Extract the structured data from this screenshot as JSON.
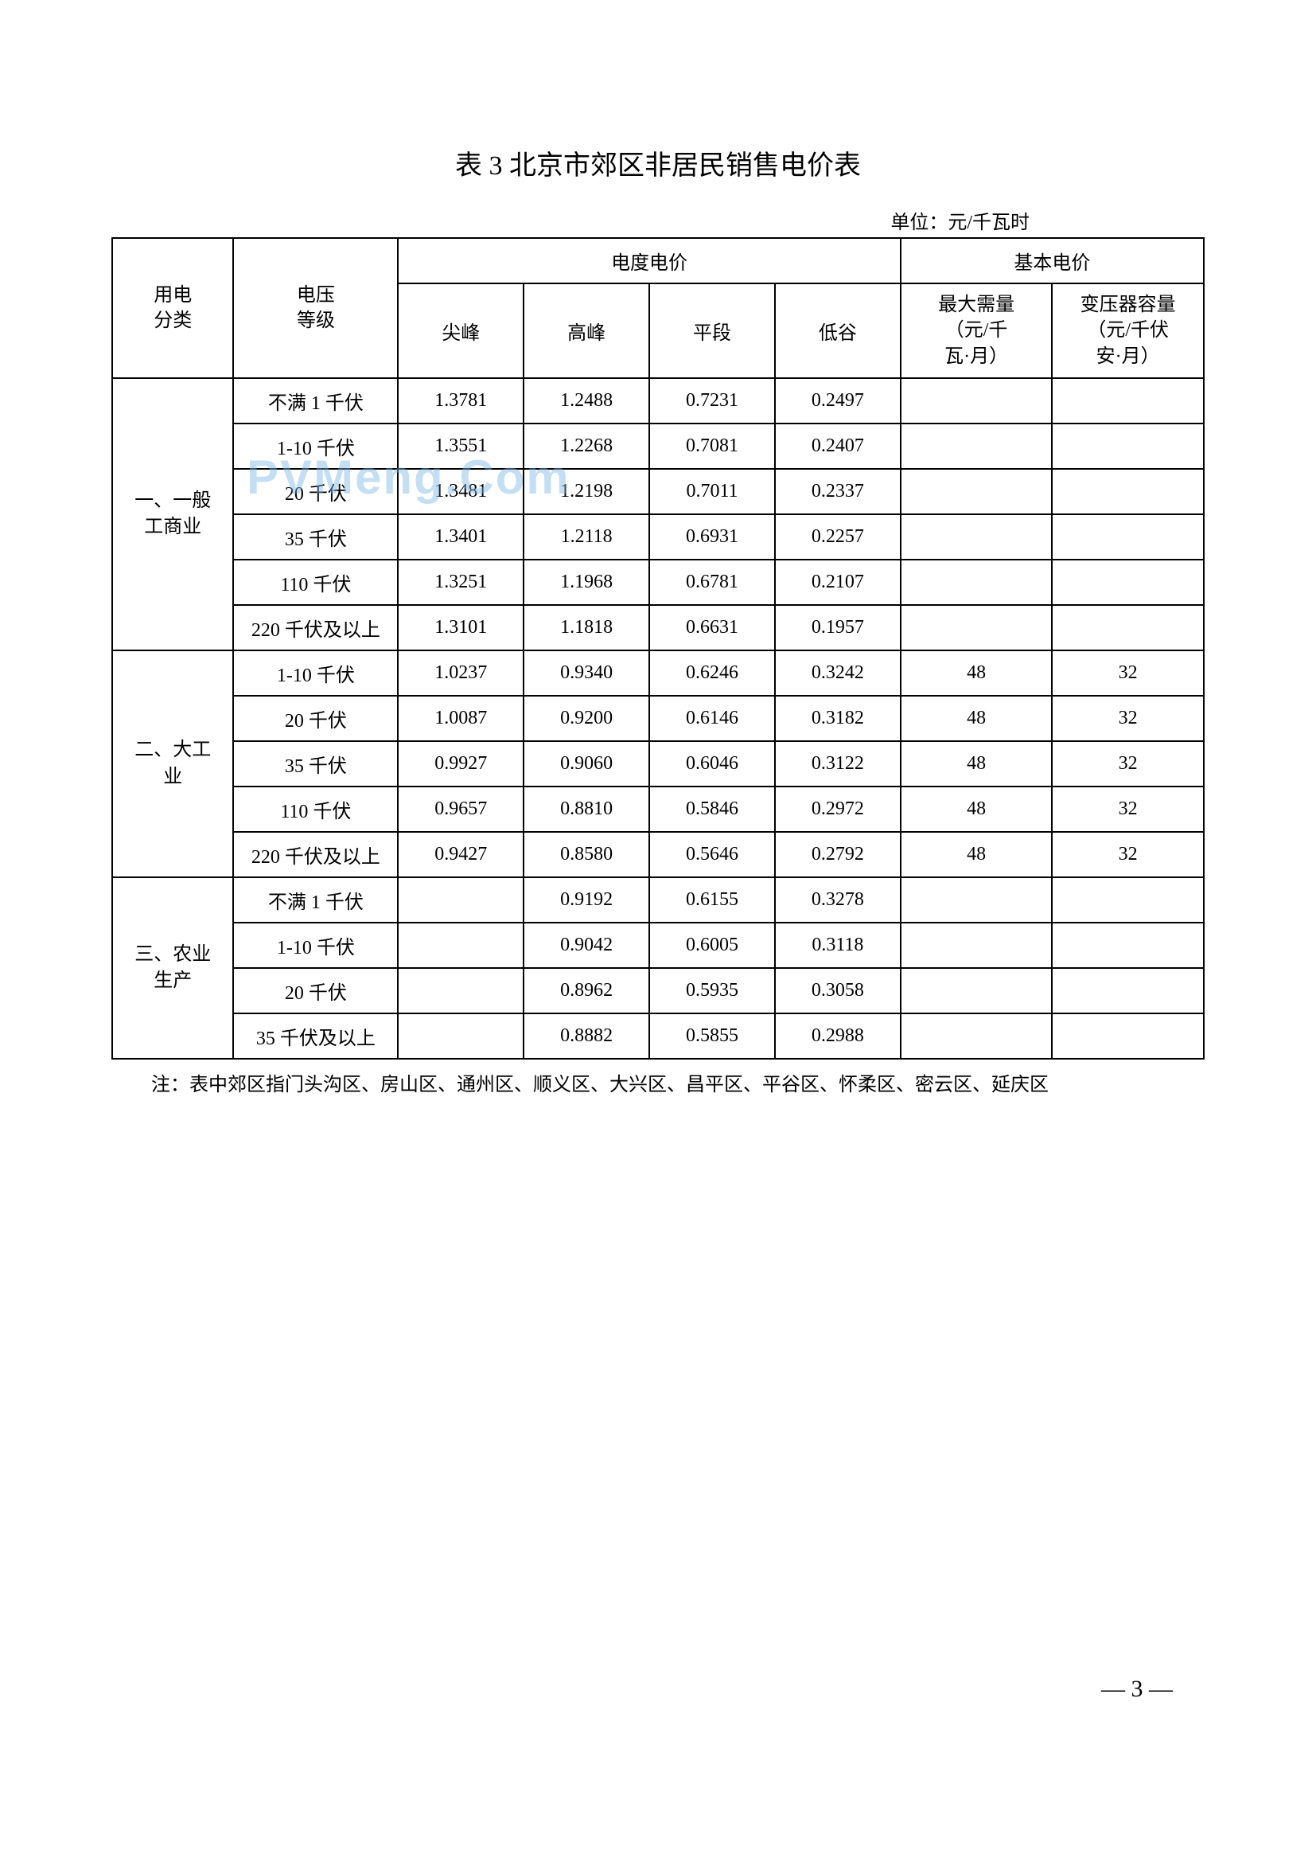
{
  "title": "表 3 北京市郊区非居民销售电价表",
  "unit": "单位：元/千瓦时",
  "headers": {
    "category": "用电\n分类",
    "voltage": "电压\n等级",
    "energy_price": "电度电价",
    "base_price": "基本电价",
    "peak_sharp": "尖峰",
    "peak_high": "高峰",
    "flat": "平段",
    "valley": "低谷",
    "max_demand": "最大需量\n（元/千\n瓦·月）",
    "transformer": "变压器容量\n（元/千伏\n安·月）"
  },
  "categories": [
    {
      "name": "一、一般\n工商业",
      "rows": [
        {
          "voltage": "不满 1 千伏",
          "sharp": "1.3781",
          "high": "1.2488",
          "flat": "0.7231",
          "valley": "0.2497",
          "demand": "",
          "trans": ""
        },
        {
          "voltage": "1-10 千伏",
          "sharp": "1.3551",
          "high": "1.2268",
          "flat": "0.7081",
          "valley": "0.2407",
          "demand": "",
          "trans": ""
        },
        {
          "voltage": "20 千伏",
          "sharp": "1.3481",
          "high": "1.2198",
          "flat": "0.7011",
          "valley": "0.2337",
          "demand": "",
          "trans": ""
        },
        {
          "voltage": "35 千伏",
          "sharp": "1.3401",
          "high": "1.2118",
          "flat": "0.6931",
          "valley": "0.2257",
          "demand": "",
          "trans": ""
        },
        {
          "voltage": "110 千伏",
          "sharp": "1.3251",
          "high": "1.1968",
          "flat": "0.6781",
          "valley": "0.2107",
          "demand": "",
          "trans": ""
        },
        {
          "voltage": "220 千伏及以上",
          "sharp": "1.3101",
          "high": "1.1818",
          "flat": "0.6631",
          "valley": "0.1957",
          "demand": "",
          "trans": ""
        }
      ]
    },
    {
      "name": "二、大工\n业",
      "rows": [
        {
          "voltage": "1-10 千伏",
          "sharp": "1.0237",
          "high": "0.9340",
          "flat": "0.6246",
          "valley": "0.3242",
          "demand": "48",
          "trans": "32"
        },
        {
          "voltage": "20 千伏",
          "sharp": "1.0087",
          "high": "0.9200",
          "flat": "0.6146",
          "valley": "0.3182",
          "demand": "48",
          "trans": "32"
        },
        {
          "voltage": "35 千伏",
          "sharp": "0.9927",
          "high": "0.9060",
          "flat": "0.6046",
          "valley": "0.3122",
          "demand": "48",
          "trans": "32"
        },
        {
          "voltage": "110 千伏",
          "sharp": "0.9657",
          "high": "0.8810",
          "flat": "0.5846",
          "valley": "0.2972",
          "demand": "48",
          "trans": "32"
        },
        {
          "voltage": "220 千伏及以上",
          "sharp": "0.9427",
          "high": "0.8580",
          "flat": "0.5646",
          "valley": "0.2792",
          "demand": "48",
          "trans": "32"
        }
      ]
    },
    {
      "name": "三、农业\n生产",
      "rows": [
        {
          "voltage": "不满 1 千伏",
          "sharp": "",
          "high": "0.9192",
          "flat": "0.6155",
          "valley": "0.3278",
          "demand": "",
          "trans": ""
        },
        {
          "voltage": "1-10 千伏",
          "sharp": "",
          "high": "0.9042",
          "flat": "0.6005",
          "valley": "0.3118",
          "demand": "",
          "trans": ""
        },
        {
          "voltage": "20 千伏",
          "sharp": "",
          "high": "0.8962",
          "flat": "0.5935",
          "valley": "0.3058",
          "demand": "",
          "trans": ""
        },
        {
          "voltage": "35 千伏及以上",
          "sharp": "",
          "high": "0.8882",
          "flat": "0.5855",
          "valley": "0.2988",
          "demand": "",
          "trans": ""
        }
      ]
    }
  ],
  "note_label": "注：",
  "note_text": "表中郊区指门头沟区、房山区、通州区、顺义区、大兴区、昌平区、平谷区、怀柔区、密云区、延庆区",
  "page_number": "— 3 —",
  "watermark": "PVMeng.Com"
}
